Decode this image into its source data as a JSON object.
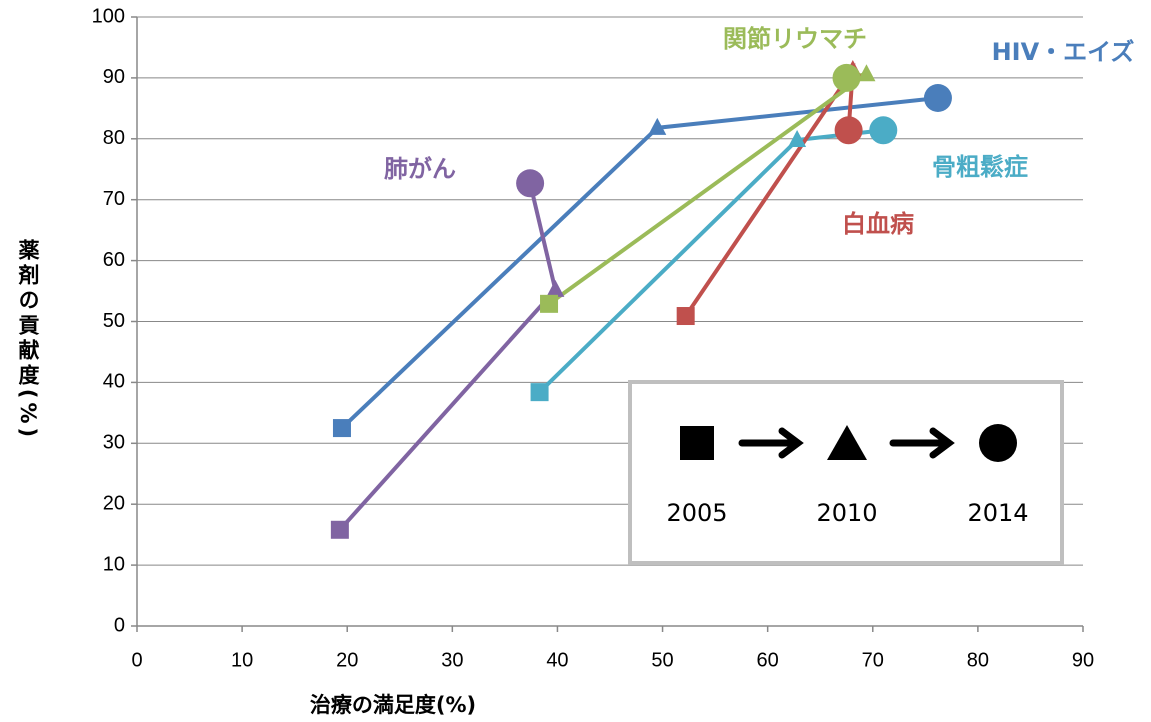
{
  "chart_data": {
    "type": "line",
    "x_label": "治療の満足度(%)",
    "y_label": "薬剤の貢献度(%)",
    "xlim": [
      0,
      90
    ],
    "xticks": [
      0,
      10,
      20,
      30,
      40,
      50,
      60,
      70,
      80,
      90
    ],
    "ylim": [
      0,
      100
    ],
    "yticks": [
      0,
      10,
      20,
      30,
      40,
      50,
      60,
      70,
      80,
      90,
      100
    ],
    "grid": true,
    "markers": [
      "square",
      "triangle",
      "circle"
    ],
    "legend_years": [
      "2005",
      "2010",
      "2014"
    ],
    "series": [
      {
        "name": "HIV・エイズ",
        "color": "#4a7ebb",
        "x": [
          19.5,
          49.5,
          76.2
        ],
        "values": [
          32.5,
          81.8,
          86.7
        ]
      },
      {
        "name": "肺がん",
        "color": "#8064a2",
        "x": [
          19.3,
          39.8,
          37.4
        ],
        "values": [
          15.8,
          55.2,
          72.7
        ]
      },
      {
        "name": "骨粗鬆症",
        "color": "#4bacc6",
        "x": [
          38.3,
          62.8,
          71.0
        ],
        "values": [
          38.4,
          79.8,
          81.4
        ]
      },
      {
        "name": "白血病",
        "color": "#c0504d",
        "x": [
          52.2,
          68.1,
          67.7
        ],
        "values": [
          50.9,
          91.3,
          81.4
        ]
      },
      {
        "name": "関節リウマチ",
        "color": "#9bbb59",
        "x": [
          39.2,
          69.4,
          67.5
        ],
        "values": [
          52.9,
          90.6,
          90.0
        ]
      }
    ]
  }
}
